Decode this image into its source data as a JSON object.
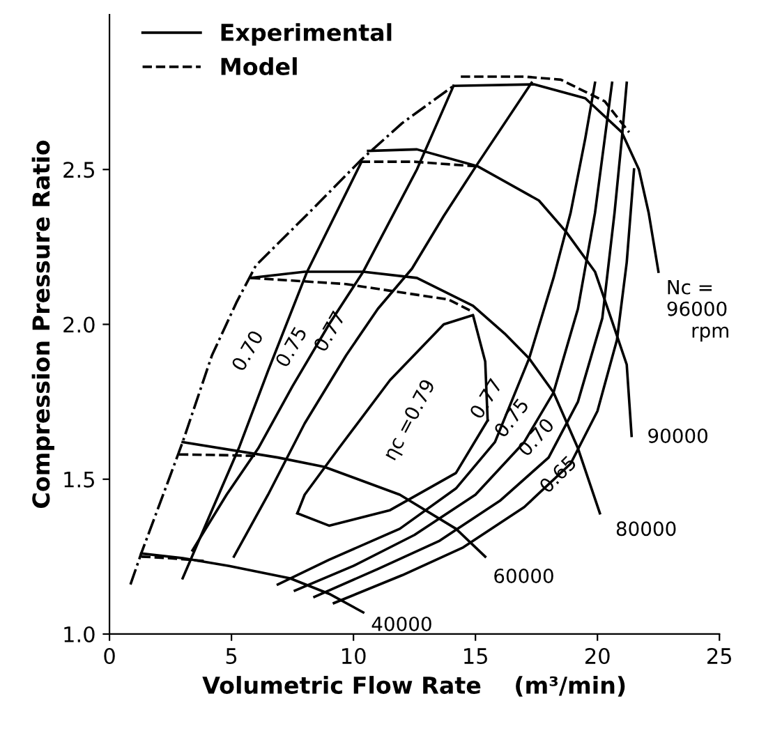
{
  "chart_data": {
    "type": "line",
    "xlabel": "Volumetric Flow Rate    (m³/min)",
    "ylabel": "Compression Pressure Ratio",
    "xlim": [
      0,
      25
    ],
    "ylim": [
      1,
      3
    ],
    "xticks": [
      0,
      5,
      10,
      15,
      20,
      25
    ],
    "yticks": [
      {
        "value": 1,
        "label": "1.0"
      },
      {
        "value": 1.5,
        "label": "1.5"
      },
      {
        "value": 2,
        "label": "2.0"
      },
      {
        "value": 2.5,
        "label": "2.5"
      }
    ],
    "grid": false,
    "legend": "top left",
    "marker": "none",
    "series": [
      {
        "name": "Experimental",
        "color": "#000000",
        "line_style": "solid",
        "x": [
          1.3,
          3,
          4.9,
          7.4,
          9.0,
          10.4
        ],
        "values": [
          1.26,
          1.245,
          1.22,
          1.18,
          1.13,
          1.07
        ]
      },
      {
        "name": "Model",
        "color": "#000000",
        "line_style": "dashed",
        "x": [
          1.3,
          2.5,
          4
        ],
        "values": [
          1.25,
          1.245,
          1.235
        ]
      },
      {
        "color": "#000000",
        "line_style": "solid",
        "x": [
          3.0,
          6.9,
          8.8,
          11.9,
          14.2,
          15.4
        ],
        "values": [
          1.62,
          1.57,
          1.54,
          1.45,
          1.34,
          1.25
        ]
      },
      {
        "color": "#000000",
        "line_style": "dashed",
        "x": [
          2.85,
          4.5,
          6.1
        ],
        "values": [
          1.58,
          1.578,
          1.575
        ]
      },
      {
        "color": "#000000",
        "line_style": "solid",
        "x": [
          5.8,
          8,
          10.4,
          12.6,
          14.9,
          16.2,
          17.2,
          18.2,
          19.2,
          20.1
        ],
        "values": [
          2.15,
          2.17,
          2.17,
          2.15,
          2.06,
          1.97,
          1.89,
          1.78,
          1.6,
          1.39
        ]
      },
      {
        "color": "#000000",
        "line_style": "dashed",
        "x": [
          5.8,
          9.7,
          13.9,
          14.9
        ],
        "values": [
          2.15,
          2.13,
          2.08,
          2.04
        ]
      },
      {
        "color": "#000000",
        "line_style": "solid",
        "x": [
          10.6,
          12.6,
          15.1,
          17.6,
          18.7,
          19.9,
          20.6,
          21.2,
          21.4
        ],
        "values": [
          2.56,
          2.565,
          2.51,
          2.4,
          2.3,
          2.17,
          2.01,
          1.87,
          1.64
        ]
      },
      {
        "color": "#000000",
        "line_style": "dashed",
        "x": [
          10.3,
          12.5,
          15.1
        ],
        "values": [
          2.525,
          2.525,
          2.51
        ]
      },
      {
        "color": "#000000",
        "line_style": "solid",
        "x": [
          14.1,
          17.4,
          19.5,
          21,
          21.7,
          22.1,
          22.5
        ],
        "values": [
          2.77,
          2.775,
          2.73,
          2.62,
          2.5,
          2.36,
          2.17
        ]
      },
      {
        "color": "#000000",
        "line_style": "dashed",
        "x": [
          14.4,
          17,
          18.5,
          20.3,
          21.3
        ],
        "values": [
          2.8,
          2.8,
          2.79,
          2.72,
          2.62
        ]
      },
      {
        "color": "#000000",
        "line_style": "dashdot",
        "x": [
          0.86,
          1.3,
          2.2,
          3,
          4.2,
          5.2,
          6,
          8.3,
          10.3,
          12,
          14.1
        ],
        "values": [
          1.16,
          1.26,
          1.45,
          1.62,
          1.9,
          2.07,
          2.19,
          2.37,
          2.53,
          2.65,
          2.77
        ]
      },
      {
        "color": "#000000",
        "line_style": "solid",
        "x": [
          7.7,
          9.0,
          11.5,
          14.2,
          15.5
        ],
        "values": [
          1.39,
          1.35,
          1.4,
          1.52,
          1.69
        ]
      },
      {
        "color": "#000000",
        "line_style": "solid",
        "x": [
          7.7,
          8.0,
          9.4,
          11.5,
          13.7,
          14.9,
          15.4,
          15.5
        ],
        "values": [
          1.39,
          1.45,
          1.6,
          1.82,
          2.0,
          2.03,
          1.88,
          1.69
        ]
      },
      {
        "color": "#000000",
        "line_style": "solid",
        "x": [
          3.0,
          4.2,
          5.3,
          6.5,
          8.1,
          10.3
        ],
        "values": [
          1.18,
          1.4,
          1.6,
          1.85,
          2.17,
          2.52
        ]
      },
      {
        "color": "#000000",
        "line_style": "solid",
        "x": [
          3.4,
          4.8,
          6.1,
          7.5,
          9,
          10.4,
          12.6,
          14.1
        ],
        "values": [
          1.27,
          1.45,
          1.6,
          1.8,
          2.0,
          2.17,
          2.5,
          2.77
        ]
      },
      {
        "color": "#000000",
        "line_style": "solid",
        "x": [
          5.1,
          6.5,
          8,
          9.7,
          11,
          12.4,
          13.7,
          15.1,
          17.3
        ],
        "values": [
          1.25,
          1.45,
          1.68,
          1.9,
          2.05,
          2.18,
          2.35,
          2.52,
          2.78
        ]
      },
      {
        "color": "#000000",
        "line_style": "solid",
        "x": [
          6.9,
          9,
          11.9,
          14.2,
          15.8,
          17.2,
          18.2,
          18.9,
          19.5,
          19.9
        ],
        "values": [
          1.16,
          1.24,
          1.34,
          1.47,
          1.62,
          1.89,
          2.15,
          2.36,
          2.6,
          2.78
        ]
      },
      {
        "color": "#000000",
        "line_style": "solid",
        "x": [
          7.6,
          10,
          12.5,
          15,
          17,
          18.2,
          19.2,
          19.9,
          20.3,
          20.6
        ],
        "values": [
          1.14,
          1.22,
          1.32,
          1.45,
          1.62,
          1.78,
          2.05,
          2.36,
          2.6,
          2.78
        ]
      },
      {
        "color": "#000000",
        "line_style": "solid",
        "x": [
          8.4,
          11,
          13.5,
          16,
          18,
          19.2,
          20.2,
          20.7,
          21.0,
          21.2
        ],
        "values": [
          1.12,
          1.21,
          1.3,
          1.43,
          1.57,
          1.75,
          2.02,
          2.36,
          2.6,
          2.78
        ]
      },
      {
        "color": "#000000",
        "line_style": "solid",
        "x": [
          9.2,
          12,
          14.5,
          17,
          18.9,
          20,
          20.8,
          21.2,
          21.5
        ],
        "values": [
          1.1,
          1.19,
          1.28,
          1.41,
          1.55,
          1.72,
          1.95,
          2.2,
          2.5
        ]
      }
    ],
    "annotations": [
      {
        "text": "40000",
        "x": 10.4,
        "y": 1.07
      },
      {
        "text": "60000",
        "x": 15.4,
        "y": 1.25
      },
      {
        "text": "80000",
        "x": 20.1,
        "y": 1.39
      },
      {
        "text": "90000",
        "x": 21.4,
        "y": 1.64
      },
      {
        "text": "Nc =\n96000\n    rpm",
        "x": 22.5,
        "y": 2.17
      },
      {
        "text": "0.70",
        "x": 6.5,
        "y": 1.85
      },
      {
        "text": "0.75",
        "x": 7.5,
        "y": 1.8
      },
      {
        "text": "0.77",
        "x": 9.7,
        "y": 1.9
      },
      {
        "text": "ηc =0.79",
        "x": 15.5,
        "y": 1.69
      },
      {
        "text": "0.77",
        "x": 15.8,
        "y": 1.62
      },
      {
        "text": "0.75",
        "x": 17,
        "y": 1.62
      },
      {
        "text": "0.70",
        "x": 18,
        "y": 1.57
      },
      {
        "text": "0.65",
        "x": 18.9,
        "y": 1.55
      }
    ]
  }
}
